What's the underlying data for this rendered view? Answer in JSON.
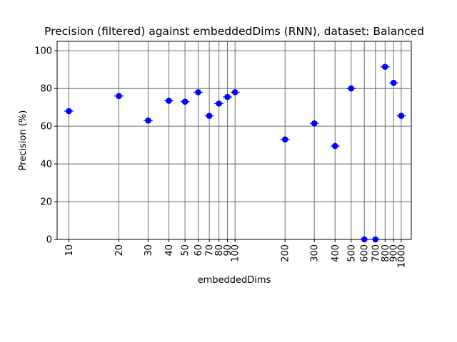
{
  "chart_data": {
    "type": "scatter",
    "title": "Precision (filtered) against embeddedDims (RNN), dataset: Balanced",
    "xlabel": "embeddedDims",
    "ylabel": "Precision (%)",
    "x_scale": "log",
    "xlim": [
      8.5,
      1150
    ],
    "ylim": [
      0,
      105
    ],
    "x_ticks": [
      10,
      20,
      30,
      40,
      50,
      60,
      70,
      80,
      90,
      100,
      200,
      300,
      400,
      500,
      600,
      700,
      800,
      900,
      1000
    ],
    "x_tick_labels": [
      "10",
      "20",
      "30",
      "40",
      "50",
      "60",
      "70",
      "80",
      "90",
      "100",
      "200",
      "300",
      "400",
      "500",
      "600",
      "700",
      "800",
      "900",
      "1000"
    ],
    "y_ticks": [
      0,
      20,
      40,
      60,
      80,
      100
    ],
    "y_tick_labels": [
      "0",
      "20",
      "40",
      "60",
      "80",
      "100"
    ],
    "grid": "vertical lines at each x tick, horizontal lines at each y tick",
    "marker_color": "#0000ff",
    "grid_color": "#6e6e6e",
    "points": [
      {
        "x": 10,
        "y": 68
      },
      {
        "x": 20,
        "y": 76
      },
      {
        "x": 30,
        "y": 63
      },
      {
        "x": 40,
        "y": 73.5
      },
      {
        "x": 50,
        "y": 73
      },
      {
        "x": 60,
        "y": 78
      },
      {
        "x": 70,
        "y": 65.5
      },
      {
        "x": 80,
        "y": 72
      },
      {
        "x": 90,
        "y": 75.5
      },
      {
        "x": 100,
        "y": 78
      },
      {
        "x": 200,
        "y": 53
      },
      {
        "x": 300,
        "y": 61.5
      },
      {
        "x": 400,
        "y": 49.5
      },
      {
        "x": 500,
        "y": 80
      },
      {
        "x": 600,
        "y": 0
      },
      {
        "x": 700,
        "y": 0
      },
      {
        "x": 800,
        "y": 91.5
      },
      {
        "x": 900,
        "y": 83
      },
      {
        "x": 1000,
        "y": 65.5
      }
    ]
  }
}
